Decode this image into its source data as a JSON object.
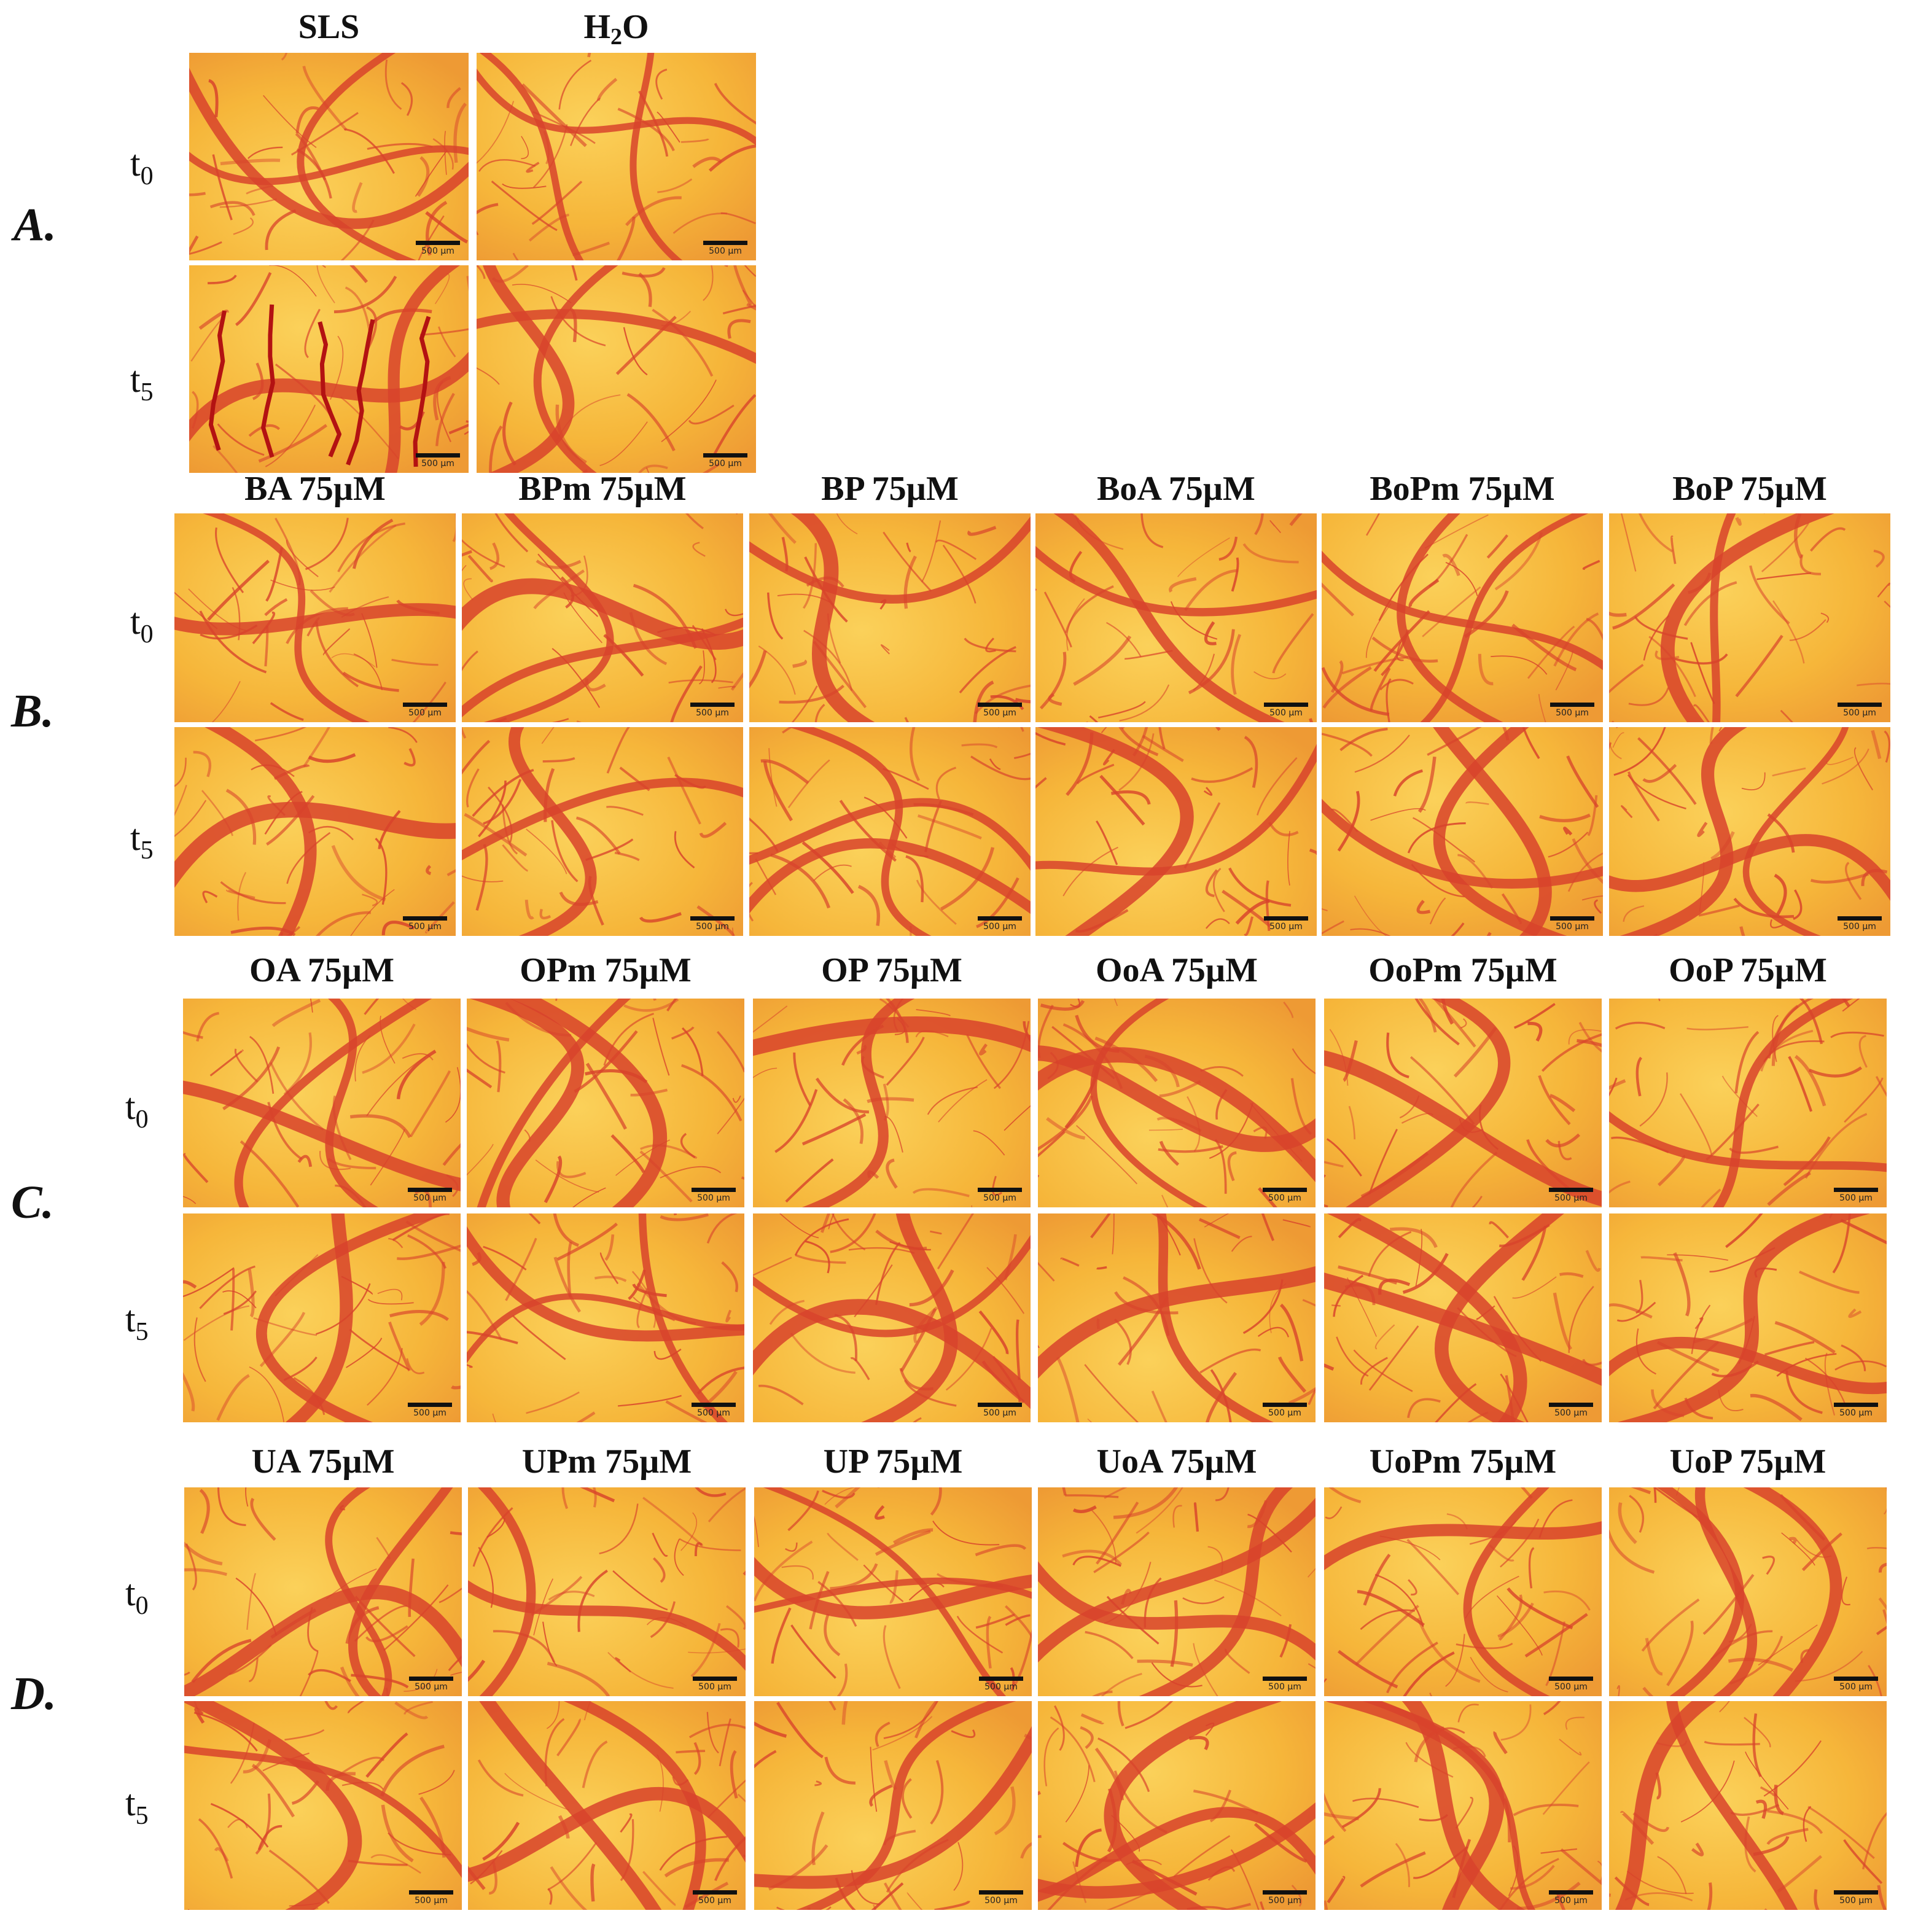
{
  "figure": {
    "sections": [
      {
        "id": "A",
        "letter": "A.",
        "rows": [
          "t0",
          "t5"
        ],
        "columns": [
          "SLS",
          "H2O"
        ],
        "damage": {
          "SLS": [
            false,
            true
          ]
        }
      },
      {
        "id": "B",
        "letter": "B.",
        "rows": [
          "t0",
          "t5"
        ],
        "columns": [
          "BA 75µM",
          "BPm 75µM",
          "BP 75µM",
          "BoA 75µM",
          "BoPm 75µM",
          "BoP 75µM"
        ]
      },
      {
        "id": "C",
        "letter": "C.",
        "rows": [
          "t0",
          "t5"
        ],
        "columns": [
          "OA 75µM",
          "OPm 75µM",
          "OP 75µM",
          "OoA 75µM",
          "OoPm 75µM",
          "OoP 75µM"
        ]
      },
      {
        "id": "D",
        "letter": "D.",
        "rows": [
          "t0",
          "t5"
        ],
        "columns": [
          "UA 75µM",
          "UPm 75µM",
          "UP 75µM",
          "UoA 75µM",
          "UoPm 75µM",
          "UoP 75µM"
        ]
      }
    ],
    "scale_bar_label": "500 µm",
    "colors": {
      "membrane": "#f6b63a",
      "vessel": "#d8432b",
      "hemorrhage": "#b31212"
    }
  }
}
